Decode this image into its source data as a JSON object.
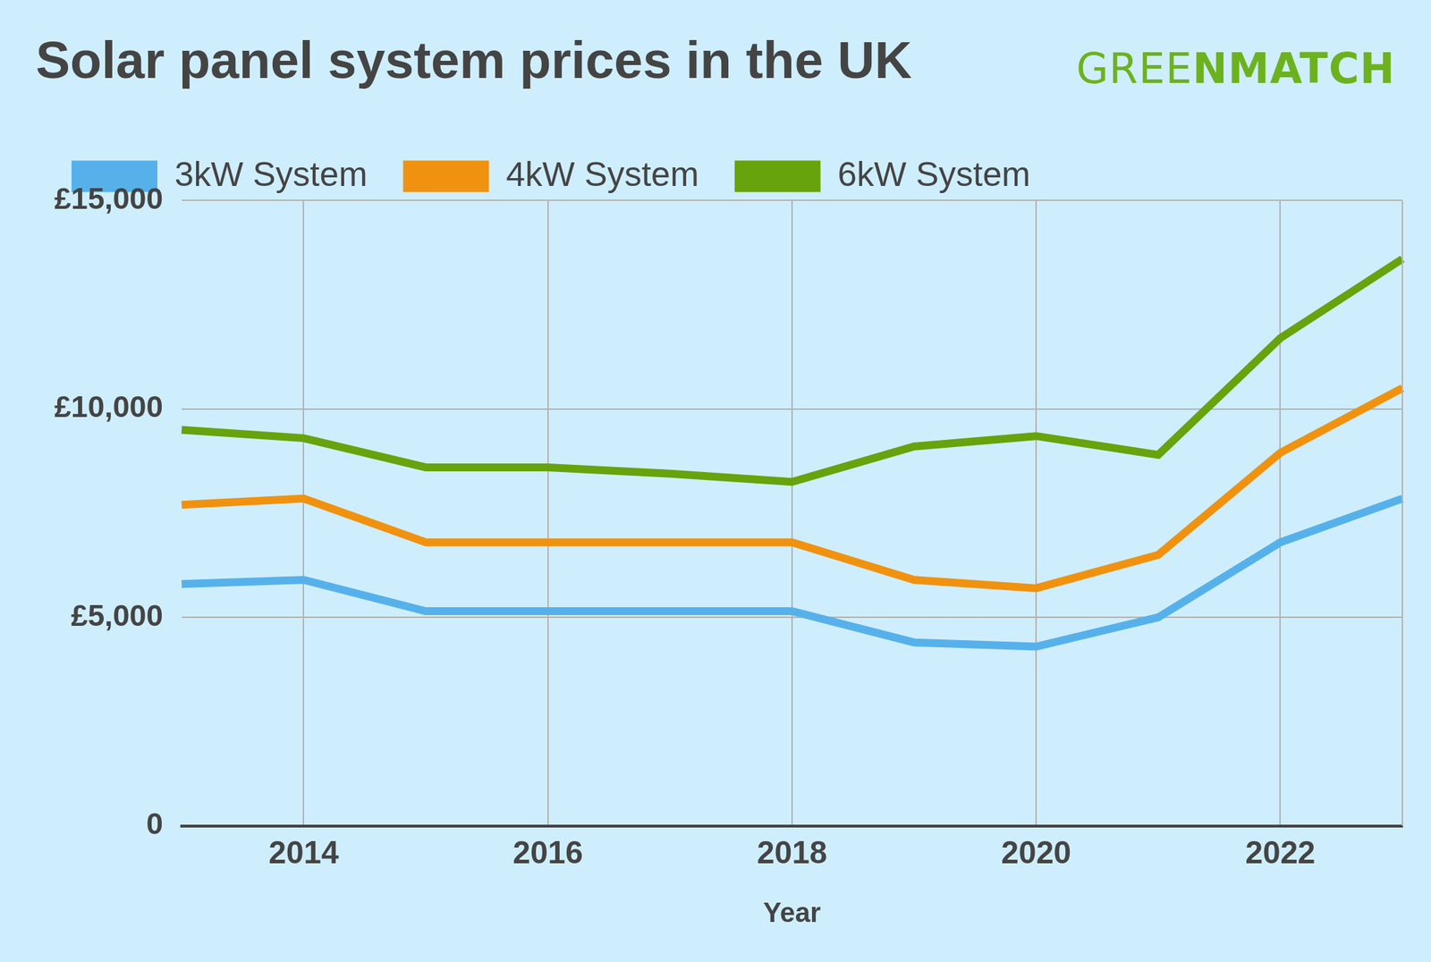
{
  "chart_data": {
    "type": "line",
    "title": "Solar panel system prices in the UK",
    "annotations": [
      "GREENMATCH"
    ],
    "x_label": "Year",
    "x": [
      2013,
      2014,
      2015,
      2016,
      2017,
      2018,
      2019,
      2020,
      2021,
      2022,
      2023
    ],
    "series": [
      {
        "name": "3kW System",
        "color": "#56b1eb",
        "values": [
          5800,
          5900,
          5150,
          5150,
          5150,
          5150,
          4400,
          4300,
          5000,
          6800,
          7850
        ]
      },
      {
        "name": "4kW System",
        "color": "#f0920f",
        "values": [
          7700,
          7850,
          6800,
          6800,
          6800,
          6800,
          5900,
          5700,
          6500,
          8950,
          10500
        ]
      },
      {
        "name": "6kW System",
        "color": "#66a30c",
        "values": [
          9500,
          9300,
          8600,
          8600,
          8450,
          8250,
          9100,
          9350,
          8900,
          11700,
          13600
        ]
      }
    ],
    "xlim": [
      2013,
      2023
    ],
    "xticks": [
      2014,
      2016,
      2018,
      2020,
      2022
    ],
    "ylim": [
      0,
      15000
    ],
    "yticks": [
      0,
      {
        "value": 5000,
        "label": "£5,000"
      },
      {
        "value": 10000,
        "label": "£10,000"
      },
      {
        "value": 15000,
        "label": "£15,000"
      }
    ],
    "grid": true,
    "legend": "top-left"
  }
}
